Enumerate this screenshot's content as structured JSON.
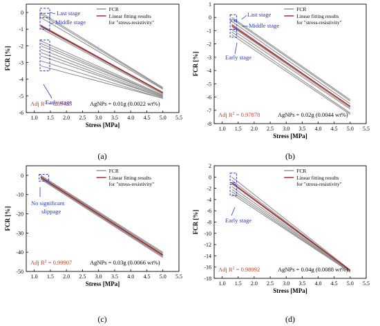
{
  "chart_data": [
    {
      "panel": "(a)",
      "type": "line",
      "xlabel": "Stress [MPa]",
      "ylabel": "FCR [%]",
      "xlim": [
        0.75,
        5.5
      ],
      "ylim": [
        -6,
        0.5
      ],
      "xticks": [
        "1.0",
        "1.5",
        "2.0",
        "2.5",
        "3.0",
        "3.5",
        "4.0",
        "4.5",
        "5.0",
        "5.5"
      ],
      "yticks": [
        "0",
        "-1",
        "-2",
        "-3",
        "-4",
        "-5",
        "-6"
      ],
      "legend": {
        "placement": "top-right",
        "entries": [
          "FCR",
          "Linear fitting results",
          "for \"stress-resistivity\""
        ]
      },
      "annotations": [
        "Last stage",
        "Middle stage",
        "Early stage"
      ],
      "adj_r2_label": "Adj R",
      "adj_r2_value": "= 0.89435",
      "agnps": "AgNPs = 0.01g (0.0022 wt%)",
      "fcr_series": [
        {
          "x": [
            1.2,
            5.0
          ],
          "y": [
            0.0,
            -4.5
          ]
        },
        {
          "x": [
            1.2,
            5.0
          ],
          "y": [
            -0.1,
            -4.55
          ]
        },
        {
          "x": [
            1.2,
            5.0
          ],
          "y": [
            -0.3,
            -4.6
          ]
        },
        {
          "x": [
            1.2,
            5.0
          ],
          "y": [
            -0.75,
            -4.8
          ]
        },
        {
          "x": [
            1.2,
            5.0
          ],
          "y": [
            -0.85,
            -4.85
          ]
        },
        {
          "x": [
            1.2,
            5.0
          ],
          "y": [
            -0.95,
            -4.9
          ]
        },
        {
          "x": [
            1.2,
            5.0
          ],
          "y": [
            -1.7,
            -4.95
          ]
        },
        {
          "x": [
            1.2,
            5.0
          ],
          "y": [
            -1.85,
            -5.0
          ]
        },
        {
          "x": [
            1.2,
            5.0
          ],
          "y": [
            -2.0,
            -5.0
          ]
        },
        {
          "x": [
            1.2,
            5.0
          ],
          "y": [
            -2.2,
            -5.05
          ]
        },
        {
          "x": [
            1.2,
            5.0
          ],
          "y": [
            -2.4,
            -5.1
          ]
        },
        {
          "x": [
            1.2,
            5.0
          ],
          "y": [
            -2.6,
            -5.1
          ]
        },
        {
          "x": [
            1.2,
            5.0
          ],
          "y": [
            -2.9,
            -5.15
          ]
        },
        {
          "x": [
            1.2,
            5.0
          ],
          "y": [
            -3.2,
            -5.15
          ]
        }
      ],
      "fit": {
        "x": [
          1.2,
          5.0
        ],
        "y": [
          -0.8,
          -4.8
        ]
      },
      "boxes": [
        {
          "x0": 1.18,
          "x1": 1.48,
          "y0": 0.25,
          "y1": -0.3
        },
        {
          "x0": 1.18,
          "x1": 1.48,
          "y0": -0.05,
          "y1": -1.0
        },
        {
          "x0": 1.18,
          "x1": 1.48,
          "y0": -1.65,
          "y1": -3.5
        }
      ]
    },
    {
      "panel": "(b)",
      "type": "line",
      "xlabel": "Stress [MPa]",
      "ylabel": "FCR [%]",
      "xlim": [
        0.75,
        5.5
      ],
      "ylim": [
        -8,
        1
      ],
      "xticks": [
        "1.0",
        "1.5",
        "2.0",
        "2.5",
        "3.0",
        "3.5",
        "4.0",
        "4.5",
        "5.0",
        "5.5"
      ],
      "yticks": [
        "1",
        "0",
        "-1",
        "-2",
        "-3",
        "-4",
        "-5",
        "-6",
        "-7",
        "-8"
      ],
      "legend": {
        "placement": "top-right",
        "entries": [
          "FCR",
          "Linear fitting results",
          "for \"stress-resistivity\""
        ]
      },
      "annotations": [
        "Last stage",
        "Middle stage",
        "Early stage"
      ],
      "adj_r2_label": "Adj R",
      "adj_r2_value": "= 0.97878",
      "agnps": "AgNPs = 0.02g (0.0044 wt%)",
      "fcr_series": [
        {
          "x": [
            1.3,
            5.0
          ],
          "y": [
            0.0,
            -6.2
          ]
        },
        {
          "x": [
            1.3,
            5.0
          ],
          "y": [
            -0.1,
            -6.3
          ]
        },
        {
          "x": [
            1.3,
            5.0
          ],
          "y": [
            -0.3,
            -6.5
          ]
        },
        {
          "x": [
            1.3,
            5.0
          ],
          "y": [
            -0.5,
            -6.7
          ]
        },
        {
          "x": [
            1.3,
            5.0
          ],
          "y": [
            -0.7,
            -6.8
          ]
        },
        {
          "x": [
            1.3,
            5.0
          ],
          "y": [
            -0.9,
            -6.9
          ]
        },
        {
          "x": [
            1.3,
            5.0
          ],
          "y": [
            -1.1,
            -7.2
          ]
        },
        {
          "x": [
            1.3,
            5.0
          ],
          "y": [
            -1.3,
            -7.3
          ]
        }
      ],
      "fit": {
        "x": [
          1.3,
          5.0
        ],
        "y": [
          -0.6,
          -6.7
        ]
      },
      "boxes": [
        {
          "x0": 1.25,
          "x1": 1.45,
          "y0": 0.2,
          "y1": -0.3
        },
        {
          "x0": 1.25,
          "x1": 1.45,
          "y0": -0.2,
          "y1": -0.9
        },
        {
          "x0": 1.25,
          "x1": 1.45,
          "y0": -0.9,
          "y1": -1.5
        }
      ]
    },
    {
      "panel": "(c)",
      "type": "line",
      "xlabel": "Stress [MPa]",
      "ylabel": "FCR [%]",
      "xlim": [
        0.75,
        5.5
      ],
      "ylim": [
        -50,
        5
      ],
      "xticks": [
        "1.0",
        "1.5",
        "2.0",
        "2.5",
        "3.0",
        "3.5",
        "4.0",
        "4.5",
        "5.0",
        "5.5"
      ],
      "yticks": [
        "0",
        "-10",
        "-20",
        "-30",
        "-40",
        "-50"
      ],
      "legend": {
        "placement": "top-right",
        "entries": [
          "FCR",
          "Linear fitting results",
          "for \"stress-resistivity\""
        ]
      },
      "annotations": [
        "No significant",
        "slippage"
      ],
      "adj_r2_label": "Adj R",
      "adj_r2_value": "= 0.99907",
      "agnps": "AgNPs = 0.03g (0.0066 wt%)",
      "fcr_series": [
        {
          "x": [
            1.2,
            5.0
          ],
          "y": [
            0.0,
            -40.0
          ]
        },
        {
          "x": [
            1.2,
            5.0
          ],
          "y": [
            -0.4,
            -40.6
          ]
        },
        {
          "x": [
            1.2,
            5.0
          ],
          "y": [
            -0.8,
            -41.2
          ]
        },
        {
          "x": [
            1.2,
            5.0
          ],
          "y": [
            -1.2,
            -41.8
          ]
        },
        {
          "x": [
            1.2,
            5.0
          ],
          "y": [
            -1.6,
            -42.3
          ]
        },
        {
          "x": [
            1.2,
            5.0
          ],
          "y": [
            -2.0,
            -42.8
          ]
        }
      ],
      "fit": {
        "x": [
          1.2,
          5.0
        ],
        "y": [
          -1.0,
          -41.5
        ]
      },
      "boxes": [
        {
          "x0": 1.15,
          "x1": 1.45,
          "y0": 0.5,
          "y1": -3.0
        }
      ]
    },
    {
      "panel": "(d)",
      "type": "line",
      "xlabel": "Stress [MPa]",
      "ylabel": "FCR [%]",
      "xlim": [
        0.75,
        5.5
      ],
      "ylim": [
        -18,
        2
      ],
      "xticks": [
        "1.0",
        "1.5",
        "2.0",
        "2.5",
        "3.0",
        "3.5",
        "4.0",
        "4.5",
        "5.0",
        "5.5"
      ],
      "yticks": [
        "2",
        "0",
        "-2",
        "-4",
        "-6",
        "-8",
        "-10",
        "-12",
        "-14",
        "-16",
        "-18"
      ],
      "legend": {
        "placement": "top-right",
        "entries": [
          "FCR",
          "Linear fitting results",
          "for \"stress-resistivity\""
        ]
      },
      "annotations": [
        "Early stage"
      ],
      "adj_r2_label": "Adj R",
      "adj_r2_value": "= 0.98992",
      "agnps": "AgNPs = 0.04g (0.0088 wt%)",
      "fcr_series": [
        {
          "x": [
            1.3,
            5.0
          ],
          "y": [
            0.0,
            -16.5
          ]
        },
        {
          "x": [
            1.3,
            5.0
          ],
          "y": [
            -0.6,
            -16.6
          ]
        },
        {
          "x": [
            1.3,
            5.0
          ],
          "y": [
            -1.2,
            -16.7
          ]
        },
        {
          "x": [
            1.3,
            5.0
          ],
          "y": [
            -1.7,
            -16.8
          ]
        },
        {
          "x": [
            1.3,
            5.0
          ],
          "y": [
            -2.2,
            -16.8
          ]
        },
        {
          "x": [
            1.3,
            5.0
          ],
          "y": [
            -2.6,
            -16.9
          ]
        },
        {
          "x": [
            1.3,
            5.0
          ],
          "y": [
            -3.0,
            -16.9
          ]
        }
      ],
      "fit": {
        "x": [
          1.3,
          5.0
        ],
        "y": [
          -1.0,
          -16.6
        ]
      },
      "boxes": [
        {
          "x0": 1.25,
          "x1": 1.45,
          "y0": 0.7,
          "y1": -1.0
        },
        {
          "x0": 1.25,
          "x1": 1.45,
          "y0": -1.3,
          "y1": -3.3
        }
      ]
    }
  ],
  "colors": {
    "fcr": "#8f8f8f",
    "fit": "#b01c1c",
    "box": "#2535c6",
    "annotation": "#2535c6",
    "r2": "#b5422a",
    "axis": "#000000"
  }
}
